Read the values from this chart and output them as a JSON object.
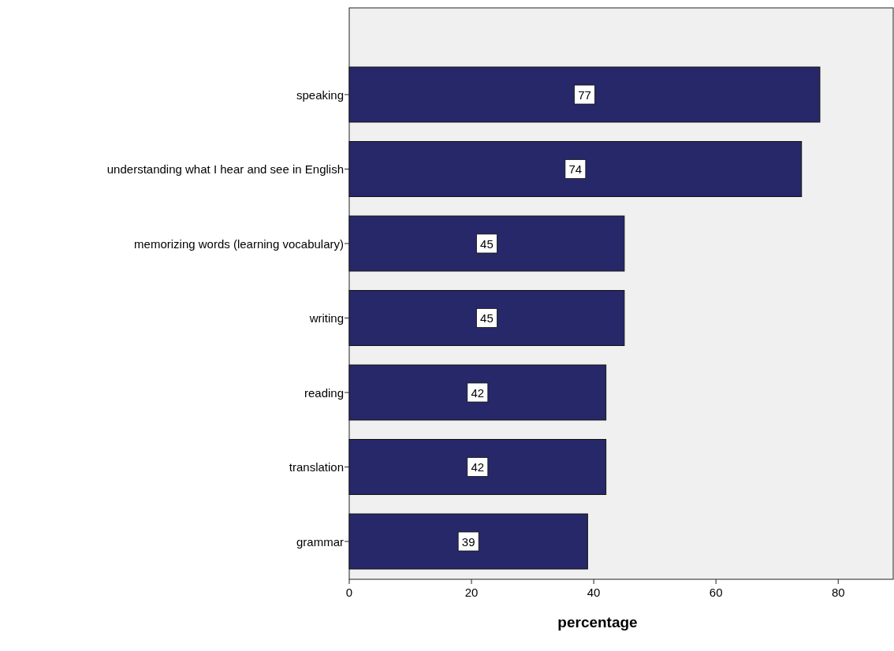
{
  "chart_data": {
    "type": "bar",
    "orientation": "horizontal",
    "xlabel": "percentage",
    "categories": [
      "speaking",
      "understanding what I hear and see in English",
      "memorizing words (learning vocabulary)",
      "writing",
      "reading",
      "translation",
      "grammar"
    ],
    "values": [
      77,
      74,
      45,
      45,
      42,
      42,
      39
    ],
    "color": "#262869",
    "data_labels": true,
    "xlim": [
      0,
      89
    ],
    "xticks": [
      0,
      20,
      40,
      60,
      80
    ],
    "grid": false
  }
}
